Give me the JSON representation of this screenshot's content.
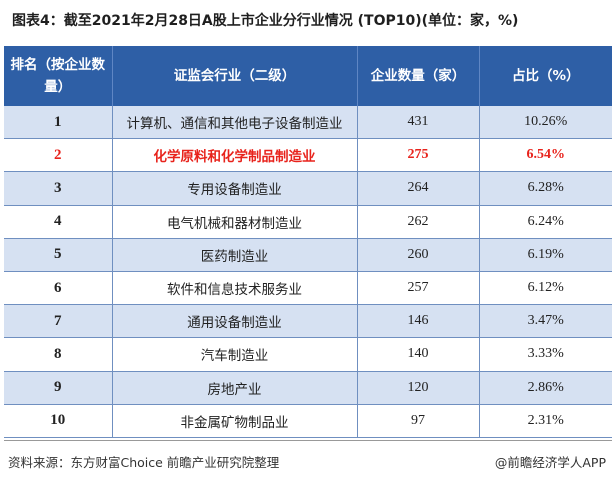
{
  "title": "图表4：截至2021年2月28日A股上市企业分行业情况 (TOP10)(单位：家，%)",
  "table": {
    "headers": [
      "排名（按企业数量）",
      "证监会行业（二级）",
      "企业数量（家）",
      "占比（%）"
    ],
    "rows": [
      {
        "rank": "1",
        "industry": "计算机、通信和其他电子设备制造业",
        "count": "431",
        "share": "10.26%"
      },
      {
        "rank": "2",
        "industry": "化学原料和化学制品制造业",
        "count": "275",
        "share": "6.54%"
      },
      {
        "rank": "3",
        "industry": "专用设备制造业",
        "count": "264",
        "share": "6.28%"
      },
      {
        "rank": "4",
        "industry": "电气机械和器材制造业",
        "count": "262",
        "share": "6.24%"
      },
      {
        "rank": "5",
        "industry": "医药制造业",
        "count": "260",
        "share": "6.19%"
      },
      {
        "rank": "6",
        "industry": "软件和信息技术服务业",
        "count": "257",
        "share": "6.12%"
      },
      {
        "rank": "7",
        "industry": "通用设备制造业",
        "count": "146",
        "share": "3.47%"
      },
      {
        "rank": "8",
        "industry": "汽车制造业",
        "count": "140",
        "share": "3.33%"
      },
      {
        "rank": "9",
        "industry": "房地产业",
        "count": "120",
        "share": "2.86%"
      },
      {
        "rank": "10",
        "industry": "非金属矿物制品业",
        "count": "97",
        "share": "2.31%"
      }
    ],
    "highlight_rank": "2",
    "highlight_color": "#e8231c",
    "header_color": "#2e5fa6"
  },
  "footer": {
    "source": "资料来源：东方财富Choice 前瞻产业研究院整理",
    "credit": "@前瞻经济学人APP"
  }
}
